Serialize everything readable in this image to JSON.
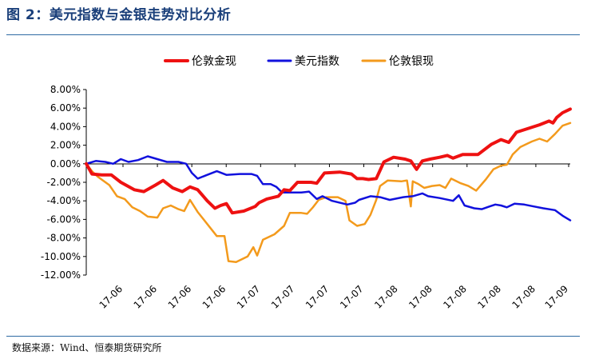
{
  "header": {
    "title": "图 2：美元指数与金银走势对比分析"
  },
  "footer": {
    "source": "数据来源：Wind、恒泰期货研究所"
  },
  "chart_data": {
    "type": "line",
    "title": "",
    "xlabel": "",
    "ylabel": "",
    "ylim": [
      -12,
      8
    ],
    "ytick_step": 2,
    "y_unit": "%",
    "grid": false,
    "legend_position": "top",
    "x_tick_labels": [
      "17-06",
      "17-06",
      "17-06",
      "17-06",
      "17-07",
      "17-07",
      "17-07",
      "17-07",
      "17-08",
      "17-08",
      "17-08",
      "17-08",
      "17-08",
      "17-09"
    ],
    "x_index_max": 130,
    "series": [
      {
        "name": "伦敦金现",
        "color": "#ee1111",
        "points": [
          [
            0,
            0
          ],
          [
            3,
            -1.1
          ],
          [
            8,
            -1.2
          ],
          [
            13,
            -1.2
          ],
          [
            18,
            -2.0
          ],
          [
            25,
            -2.8
          ],
          [
            30,
            -3.0
          ],
          [
            36,
            -2.3
          ],
          [
            40,
            -1.8
          ],
          [
            45,
            -2.6
          ],
          [
            50,
            -3.0
          ],
          [
            54,
            -2.5
          ],
          [
            58,
            -2.8
          ],
          [
            63,
            -4.0
          ],
          [
            67,
            -4.8
          ],
          [
            70,
            -4.5
          ],
          [
            73,
            -4.3
          ],
          [
            76,
            -5.3
          ],
          [
            82,
            -5.1
          ],
          [
            88,
            -4.6
          ],
          [
            90,
            -4.2
          ],
          [
            94,
            -3.8
          ],
          [
            100,
            -3.5
          ],
          [
            103,
            -2.8
          ],
          [
            106,
            -2.9
          ],
          [
            110,
            -2.0
          ],
          [
            117,
            -2.0
          ],
          [
            120,
            -2.1
          ],
          [
            124,
            -1.0
          ],
          [
            132,
            -0.9
          ],
          [
            138,
            -1.1
          ],
          [
            141,
            -1.6
          ],
          [
            144,
            -1.6
          ],
          [
            147,
            -1.7
          ],
          [
            151,
            -1.6
          ],
          [
            155,
            0.2
          ],
          [
            160,
            0.7
          ],
          [
            166,
            0.5
          ],
          [
            169,
            0.3
          ],
          [
            172,
            -0.6
          ],
          [
            175,
            0.3
          ],
          [
            179,
            0.5
          ],
          [
            184,
            0.7
          ],
          [
            188,
            0.9
          ],
          [
            191,
            0.6
          ],
          [
            196,
            1.0
          ],
          [
            204,
            1.0
          ],
          [
            211,
            2.1
          ],
          [
            216,
            2.6
          ],
          [
            220,
            2.3
          ],
          [
            224,
            3.4
          ],
          [
            236,
            4.2
          ],
          [
            241,
            4.6
          ],
          [
            243,
            4.4
          ],
          [
            245,
            5.0
          ],
          [
            248,
            5.5
          ],
          [
            252,
            5.9
          ]
        ]
      },
      {
        "name": "美元指数",
        "color": "#1111dd",
        "points": [
          [
            0,
            0
          ],
          [
            5,
            0.3
          ],
          [
            10,
            0.2
          ],
          [
            14,
            0.0
          ],
          [
            18,
            0.5
          ],
          [
            22,
            0.2
          ],
          [
            27,
            0.4
          ],
          [
            32,
            0.8
          ],
          [
            37,
            0.5
          ],
          [
            42,
            0.2
          ],
          [
            48,
            0.2
          ],
          [
            52,
            0.0
          ],
          [
            55,
            -1.0
          ],
          [
            58,
            -1.6
          ],
          [
            63,
            -1.2
          ],
          [
            68,
            -0.8
          ],
          [
            73,
            -1.2
          ],
          [
            80,
            -1.1
          ],
          [
            86,
            -1.1
          ],
          [
            89,
            -1.3
          ],
          [
            92,
            -2.2
          ],
          [
            96,
            -2.2
          ],
          [
            99,
            -2.5
          ],
          [
            102,
            -3.1
          ],
          [
            112,
            -3.1
          ],
          [
            116,
            -3.0
          ],
          [
            120,
            -3.8
          ],
          [
            123,
            -3.5
          ],
          [
            128,
            -4.0
          ],
          [
            136,
            -4.4
          ],
          [
            140,
            -4.2
          ],
          [
            142,
            -3.9
          ],
          [
            148,
            -3.5
          ],
          [
            153,
            -3.6
          ],
          [
            158,
            -3.9
          ],
          [
            165,
            -3.6
          ],
          [
            170,
            -3.5
          ],
          [
            175,
            -3.2
          ],
          [
            178,
            -3.5
          ],
          [
            184,
            -3.7
          ],
          [
            191,
            -4.0
          ],
          [
            194,
            -3.4
          ],
          [
            197,
            -4.5
          ],
          [
            202,
            -4.8
          ],
          [
            206,
            -4.9
          ],
          [
            210,
            -4.6
          ],
          [
            213,
            -4.4
          ],
          [
            216,
            -4.5
          ],
          [
            219,
            -4.7
          ],
          [
            223,
            -4.3
          ],
          [
            228,
            -4.4
          ],
          [
            233,
            -4.6
          ],
          [
            238,
            -4.8
          ],
          [
            244,
            -5.0
          ],
          [
            248,
            -5.6
          ],
          [
            252,
            -6.1
          ]
        ]
      },
      {
        "name": "伦敦银现",
        "color": "#f39a1c",
        "points": [
          [
            0,
            0
          ],
          [
            3,
            -0.8
          ],
          [
            6,
            -1.4
          ],
          [
            12,
            -2.3
          ],
          [
            16,
            -3.5
          ],
          [
            20,
            -3.8
          ],
          [
            24,
            -4.7
          ],
          [
            28,
            -5.1
          ],
          [
            32,
            -5.7
          ],
          [
            37,
            -5.8
          ],
          [
            40,
            -4.8
          ],
          [
            44,
            -4.5
          ],
          [
            48,
            -4.9
          ],
          [
            51,
            -5.1
          ],
          [
            54,
            -3.9
          ],
          [
            58,
            -5.2
          ],
          [
            63,
            -6.5
          ],
          [
            68,
            -7.8
          ],
          [
            72,
            -7.8
          ],
          [
            74,
            -10.5
          ],
          [
            78,
            -10.6
          ],
          [
            84,
            -10.0
          ],
          [
            87,
            -9.0
          ],
          [
            89,
            -9.9
          ],
          [
            92,
            -8.2
          ],
          [
            98,
            -7.6
          ],
          [
            103,
            -6.7
          ],
          [
            106,
            -5.3
          ],
          [
            112,
            -5.3
          ],
          [
            115,
            -5.4
          ],
          [
            118,
            -4.7
          ],
          [
            121,
            -3.9
          ],
          [
            125,
            -3.6
          ],
          [
            128,
            -3.6
          ],
          [
            131,
            -3.6
          ],
          [
            135,
            -4.0
          ],
          [
            137,
            -6.1
          ],
          [
            141,
            -6.7
          ],
          [
            145,
            -6.5
          ],
          [
            148,
            -5.5
          ],
          [
            151,
            -3.9
          ],
          [
            153,
            -2.4
          ],
          [
            157,
            -1.8
          ],
          [
            164,
            -1.9
          ],
          [
            167,
            -1.8
          ],
          [
            169,
            -4.6
          ],
          [
            170,
            -1.9
          ],
          [
            173,
            -2.2
          ],
          [
            176,
            -2.6
          ],
          [
            180,
            -2.4
          ],
          [
            184,
            -2.3
          ],
          [
            187,
            -2.6
          ],
          [
            190,
            -1.6
          ],
          [
            195,
            -2.1
          ],
          [
            199,
            -2.4
          ],
          [
            203,
            -2.9
          ],
          [
            208,
            -1.7
          ],
          [
            212,
            -0.6
          ],
          [
            216,
            -0.2
          ],
          [
            219,
            -0.1
          ],
          [
            222,
            1.0
          ],
          [
            226,
            1.8
          ],
          [
            232,
            2.4
          ],
          [
            236,
            2.7
          ],
          [
            240,
            2.4
          ],
          [
            244,
            3.2
          ],
          [
            248,
            4.1
          ],
          [
            252,
            4.4
          ]
        ]
      }
    ]
  }
}
